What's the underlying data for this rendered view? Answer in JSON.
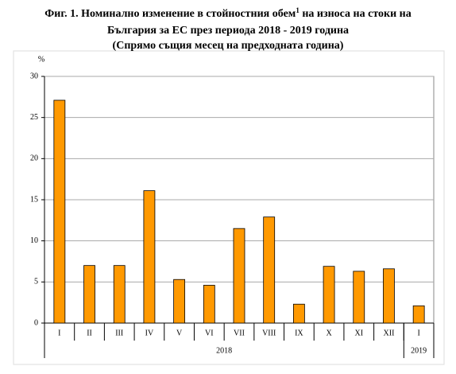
{
  "chart_data": {
    "type": "bar",
    "title_lines": [
      "Фиг. 1. Номинално изменение в стойностния обем",
      "1",
      " на износа на стоки на",
      "България за ЕС през периода 2018 - 2019 година",
      "(Спрямо същия месец на предходната година)"
    ],
    "ylabel": "%",
    "groups": [
      {
        "name": "2018",
        "categories": [
          "I",
          "II",
          "III",
          "IV",
          "V",
          "VI",
          "VII",
          "VIII",
          "IX",
          "X",
          "XI",
          "XII"
        ],
        "values": [
          27.1,
          7.0,
          7.0,
          16.1,
          5.3,
          4.6,
          11.5,
          12.9,
          2.3,
          6.9,
          6.3,
          6.6
        ]
      },
      {
        "name": "2019",
        "categories": [
          "I"
        ],
        "values": [
          2.1
        ]
      }
    ],
    "color": "#ff9900",
    "ylim": [
      0,
      30
    ],
    "yticks": [
      0,
      5,
      10,
      15,
      20,
      25,
      30
    ],
    "grid": true
  }
}
